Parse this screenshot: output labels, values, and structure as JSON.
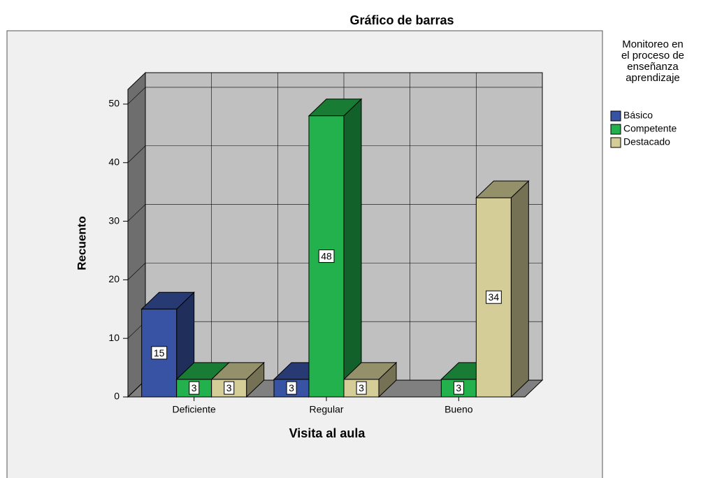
{
  "chart_data": {
    "type": "bar3d",
    "title": "Gráfico de barras",
    "x_label": "Visita al aula",
    "y_label": "Recuento",
    "legend_title": "Monitoreo en el proceso de enseñanza aprendizaje",
    "categories": [
      "Deficiente",
      "Regular",
      "Bueno"
    ],
    "series": [
      {
        "name": "Básico",
        "color": "#3953a4",
        "values": [
          15,
          3,
          null
        ]
      },
      {
        "name": "Competente",
        "color": "#22b14c",
        "values": [
          3,
          48,
          3
        ]
      },
      {
        "name": "Destacado",
        "color": "#d4cd98",
        "values": [
          3,
          3,
          34
        ]
      }
    ],
    "ylim": [
      0,
      52.5
    ],
    "yticks": [
      0,
      10,
      20,
      30,
      40,
      50
    ],
    "grid": true,
    "legend": "right"
  }
}
